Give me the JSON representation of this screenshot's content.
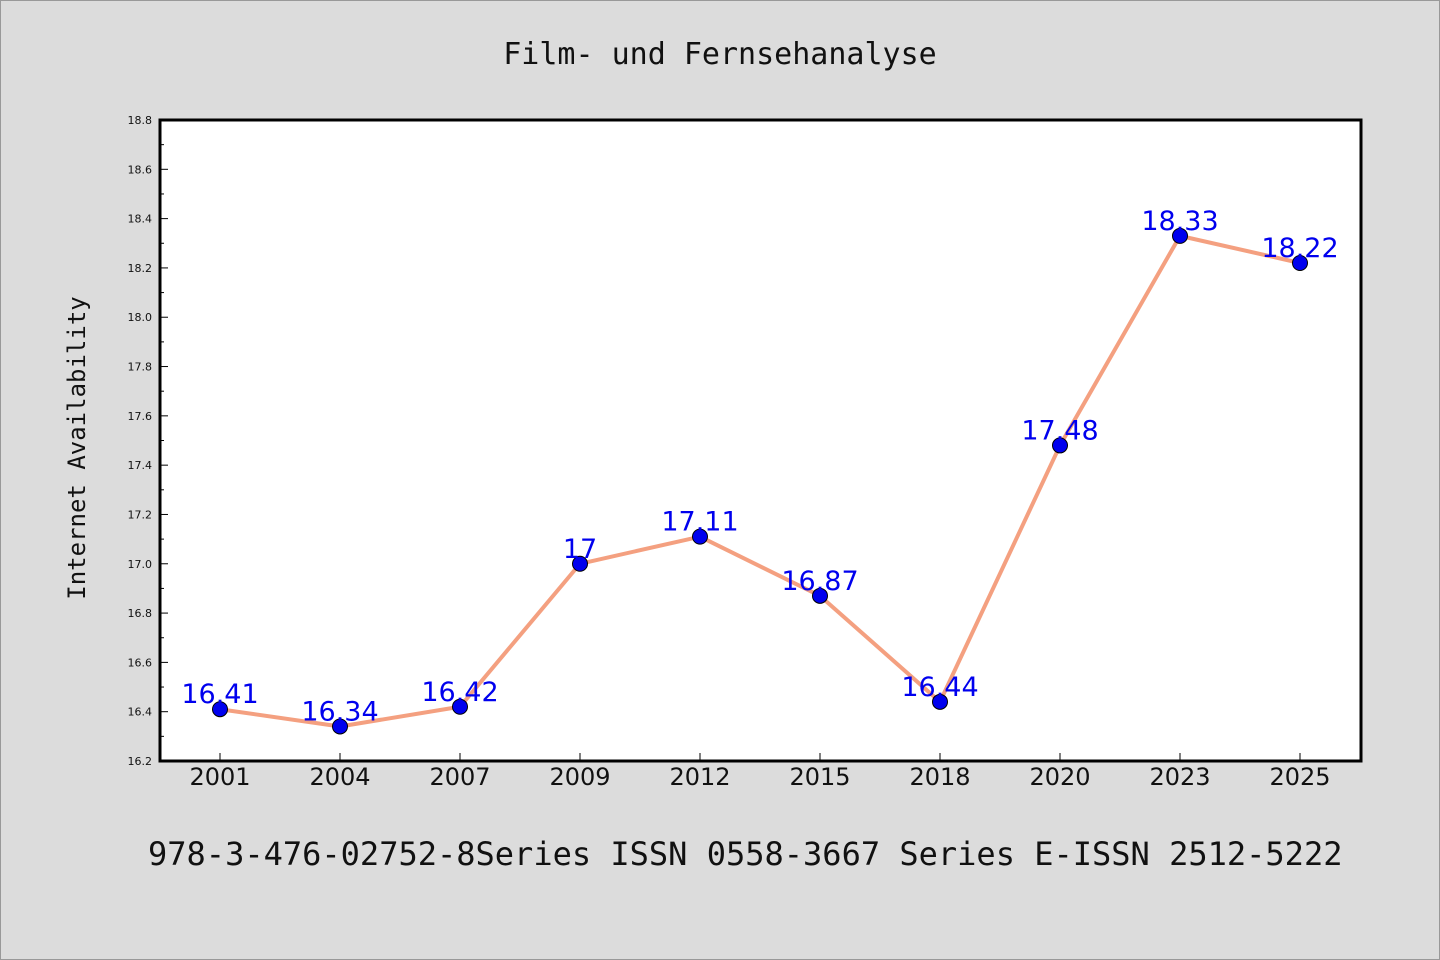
{
  "chart_data": {
    "type": "line",
    "title": "Film- und Fernsehanalyse",
    "xlabel": "",
    "ylabel": "Internet Availability",
    "categories": [
      "2001",
      "2004",
      "2007",
      "2009",
      "2012",
      "2015",
      "2018",
      "2020",
      "2023",
      "2025"
    ],
    "series": [
      {
        "values": [
          16.41,
          16.34,
          16.42,
          17,
          17.11,
          16.87,
          16.44,
          17.48,
          18.33,
          18.22
        ],
        "labels": [
          "16.41",
          "16.34",
          "16.42",
          "17",
          "17.11",
          "16.87",
          "16.44",
          "17.48",
          "18.33",
          "18.22"
        ],
        "line_color": "#f4a080",
        "marker_color": "#0000ee"
      }
    ],
    "ylim": [
      16.2,
      18.8
    ],
    "yticks": [
      "16.2",
      "16.4",
      "16.6",
      "16.8",
      "17.0",
      "17.2",
      "17.4",
      "17.6",
      "17.8",
      "18.0",
      "18.2",
      "18.4",
      "18.6",
      "18.8"
    ],
    "grid": false,
    "footer": "978-3-476-02752-8Series ISSN 0558-3667 Series E-ISSN 2512-5222"
  }
}
